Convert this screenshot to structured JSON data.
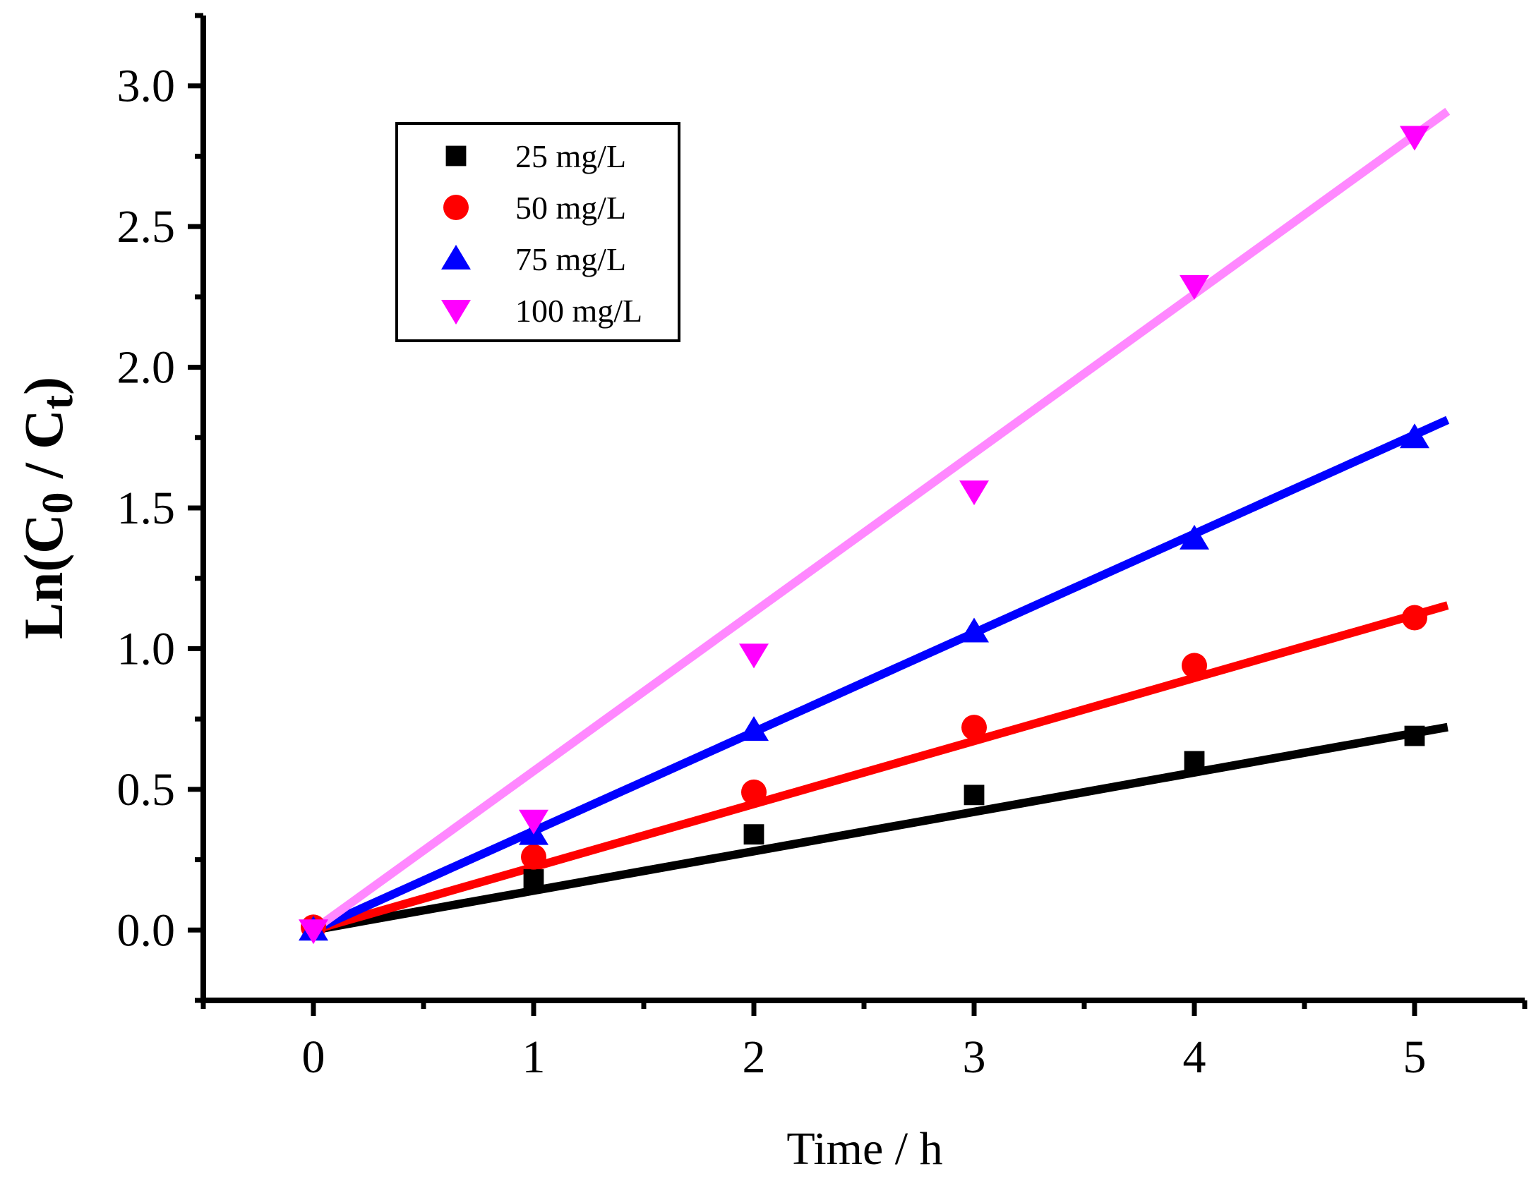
{
  "chart_data": {
    "type": "scatter",
    "xlabel": "Time / h",
    "ylabel": {
      "prefix": "Ln(C",
      "sub1": "0",
      "mid": " / C",
      "sub2": "t",
      "suffix": ")"
    },
    "xlim": [
      -0.5,
      5.5
    ],
    "ylim": [
      -0.25,
      3.25
    ],
    "xticks": [
      0,
      1,
      2,
      3,
      4,
      5
    ],
    "xtick_labels": [
      "0",
      "1",
      "2",
      "3",
      "4",
      "5"
    ],
    "yticks": [
      0.0,
      0.5,
      1.0,
      1.5,
      2.0,
      2.5,
      3.0
    ],
    "ytick_labels": [
      "0.0",
      "0.5",
      "1.0",
      "1.5",
      "2.0",
      "2.5",
      "3.0"
    ],
    "grid": false,
    "legend_position": "top-left",
    "x": [
      0,
      1,
      2,
      3,
      4,
      5
    ],
    "series": [
      {
        "name": "25 mg/L",
        "marker": "square",
        "color": "#000000",
        "line_color": "#000000",
        "values": [
          0.0,
          0.18,
          0.34,
          0.48,
          0.6,
          0.69
        ],
        "fit": [
          0.0,
          0.14
        ]
      },
      {
        "name": "50 mg/L",
        "marker": "circle",
        "color": "#ff0000",
        "line_color": "#ff0000",
        "values": [
          0.01,
          0.26,
          0.49,
          0.72,
          0.94,
          1.11
        ],
        "fit": [
          0.0,
          0.224
        ]
      },
      {
        "name": "75 mg/L",
        "marker": "triangle-up",
        "color": "#0000ff",
        "line_color": "#0000ff",
        "values": [
          0.0,
          0.34,
          0.71,
          1.06,
          1.39,
          1.75
        ],
        "fit": [
          0.0,
          0.352
        ]
      },
      {
        "name": "100 mg/L",
        "marker": "triangle-down",
        "color": "#ff00ff",
        "line_color": "#ff88ff",
        "values": [
          0.0,
          0.39,
          0.98,
          1.56,
          2.29,
          2.82
        ],
        "fit": [
          0.0,
          0.565
        ]
      }
    ]
  }
}
